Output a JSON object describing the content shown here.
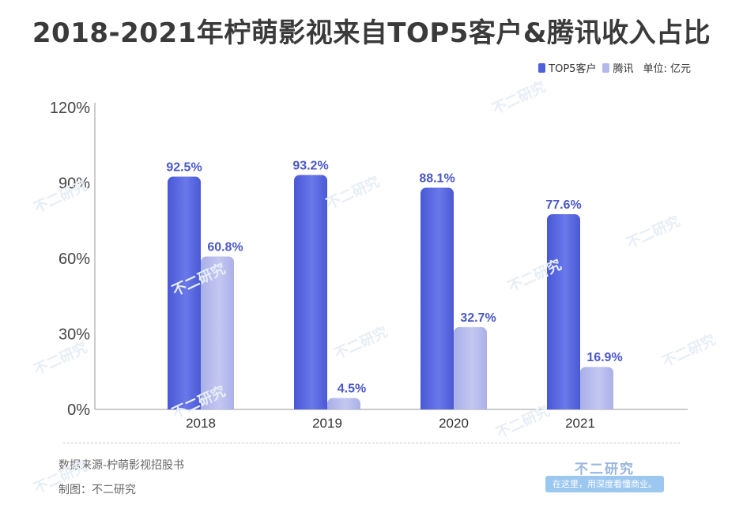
{
  "chart_data": {
    "type": "bar",
    "title": "2018-2021年柠萌影视来自TOP5客户&腾讯收入占比",
    "categories": [
      "2018",
      "2019",
      "2020",
      "2021"
    ],
    "series": [
      {
        "name": "TOP5客户",
        "values": [
          92.5,
          93.2,
          88.1,
          77.6
        ],
        "labels": [
          "92.5%",
          "93.2%",
          "88.1%",
          "77.6%"
        ],
        "color": "#5161dc"
      },
      {
        "name": "腾讯",
        "values": [
          60.8,
          4.5,
          32.7,
          16.9
        ],
        "labels": [
          "60.8%",
          "4.5%",
          "32.7%",
          "16.9%"
        ],
        "color": "#b4b9ec"
      }
    ],
    "unit_note": "单位: 亿元",
    "yticks": [
      "0%",
      "30%",
      "60%",
      "90%",
      "120%"
    ],
    "ylim": [
      0,
      120
    ],
    "xlabel": "",
    "ylabel": "",
    "grid": false,
    "legend": "top-right",
    "label_color": "#4a58c6"
  },
  "footer": {
    "source": "数据来源-柠萌影视招股书",
    "maker": "制图：不二研究",
    "brand": "不二研究",
    "brand_slogan": "在这里，用深度看懂商业。"
  },
  "watermark": "不二研究"
}
